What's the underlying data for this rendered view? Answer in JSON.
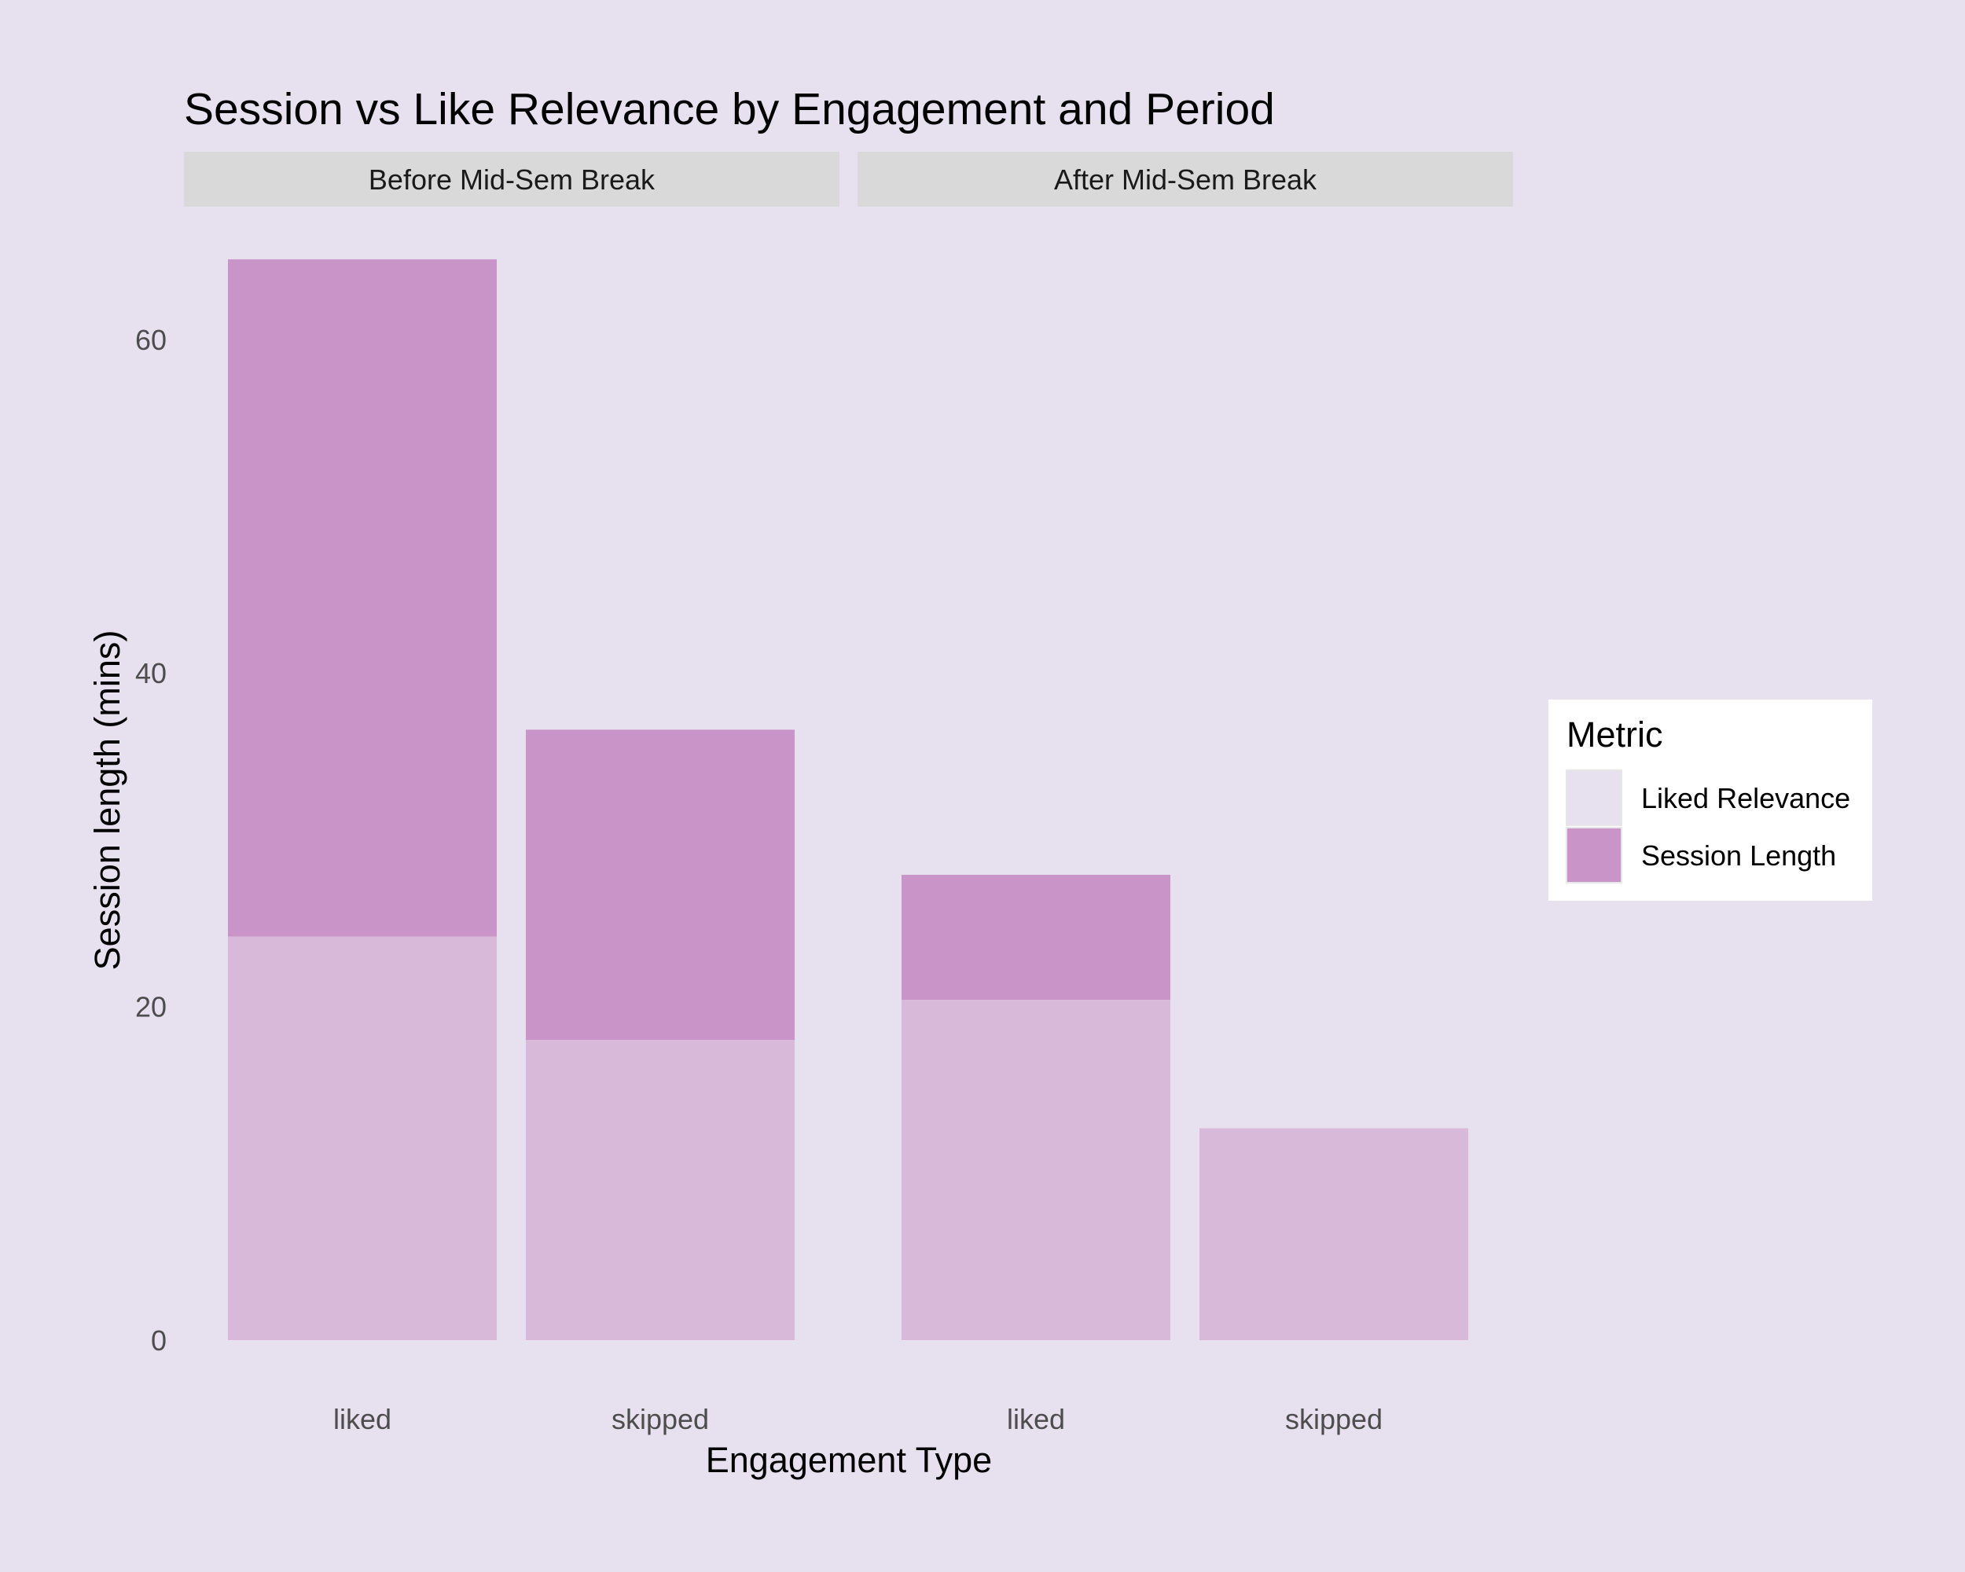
{
  "chart_data": {
    "type": "bar",
    "stacked": true,
    "title": "Session vs Like Relevance by Engagement and Period",
    "xlabel": "Engagement Type",
    "ylabel": "Session length (mins)",
    "ylim": [
      0,
      65
    ],
    "yticks": [
      0,
      20,
      40,
      60
    ],
    "grid": false,
    "legend": {
      "title": "Metric",
      "placement": "right",
      "entries": [
        {
          "name": "Liked Relevance",
          "color": "#e7e1ef"
        },
        {
          "name": "Session Length",
          "color": "#c994c7"
        }
      ]
    },
    "colors": {
      "background": "#e7e1ef",
      "strip": "#d9d9d9",
      "liked_relevance_fill": "#d8b9da",
      "session_length_fill": "#c994c7"
    },
    "categories": [
      "liked",
      "skipped"
    ],
    "facets": [
      {
        "label": "Before Mid-Sem Break",
        "bars": [
          {
            "category": "liked",
            "liked_relevance": 24.2,
            "session_length": 64.8
          },
          {
            "category": "skipped",
            "liked_relevance": 18.0,
            "session_length": 36.6
          }
        ]
      },
      {
        "label": "After Mid-Sem Break",
        "bars": [
          {
            "category": "liked",
            "liked_relevance": 20.4,
            "session_length": 27.9
          },
          {
            "category": "skipped",
            "liked_relevance": 12.7,
            "session_length": 12.7
          }
        ]
      }
    ]
  }
}
